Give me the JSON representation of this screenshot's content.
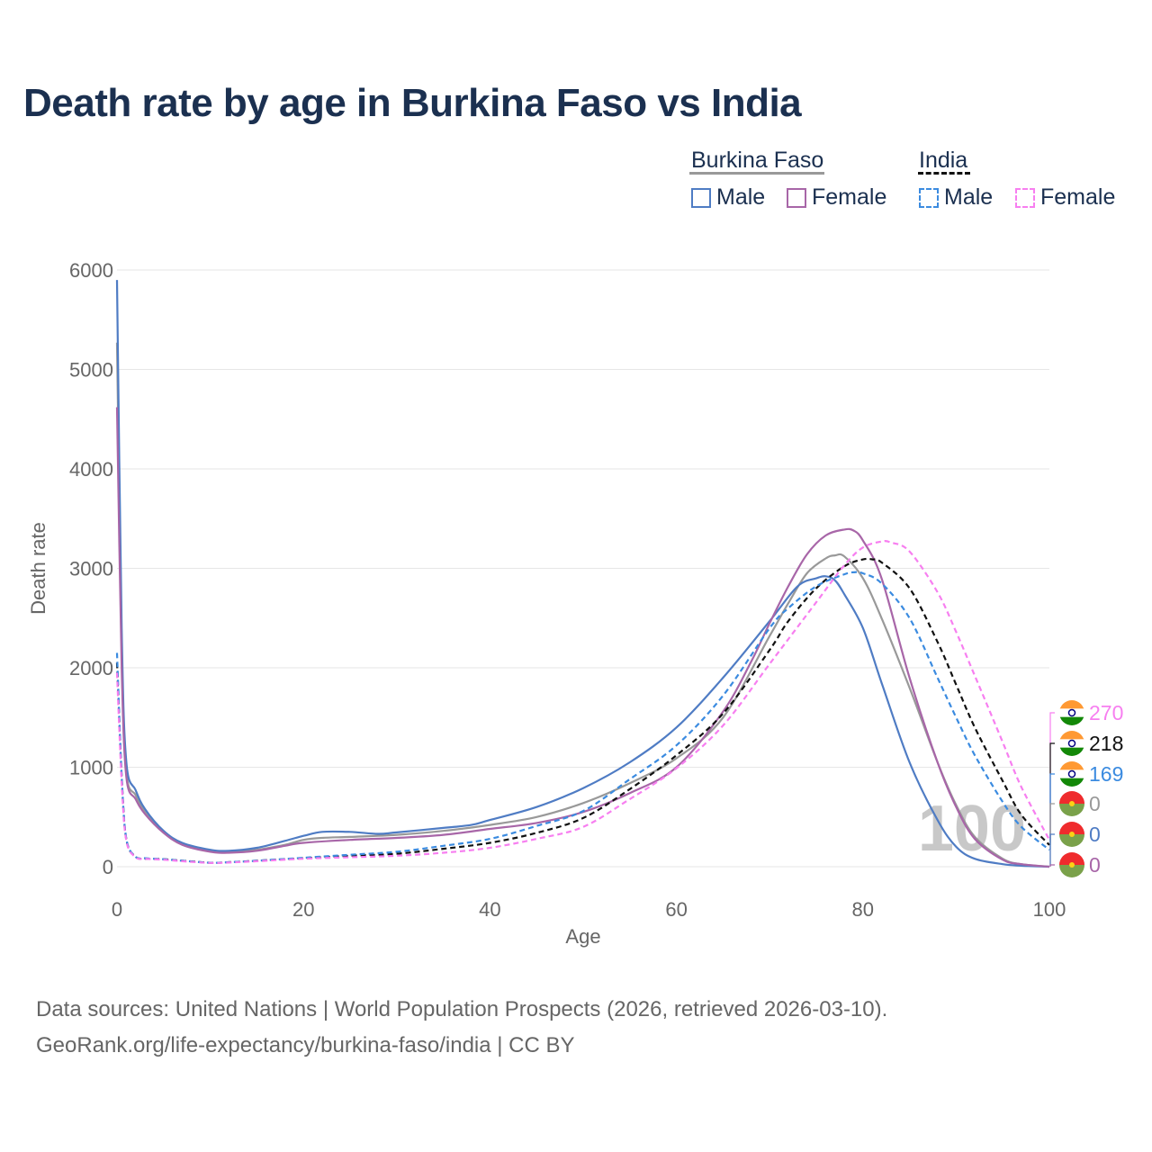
{
  "title": "Death rate by age in Burkina Faso vs India",
  "legend": {
    "groups": [
      {
        "name": "Burkina Faso",
        "items": [
          {
            "label": "Male",
            "color": "#4f7cc4",
            "dashed": false
          },
          {
            "label": "Female",
            "color": "#a866a8",
            "dashed": false
          }
        ],
        "underline_color": "#999999",
        "underline_dashed": false
      },
      {
        "name": "India",
        "items": [
          {
            "label": "Male",
            "color": "#3b8be0",
            "dashed": true
          },
          {
            "label": "Female",
            "color": "#f77ff0",
            "dashed": true
          }
        ],
        "underline_color": "#111111",
        "underline_dashed": true
      }
    ]
  },
  "end_labels": [
    {
      "value": "270",
      "color": "#f77ff0",
      "flag": "india-flag-icon"
    },
    {
      "value": "218",
      "color": "#111111",
      "flag": "india-flag-icon"
    },
    {
      "value": "169",
      "color": "#3b8be0",
      "flag": "india-flag-icon"
    },
    {
      "value": "0",
      "color": "#999999",
      "flag": "burkina-faso-flag-icon"
    },
    {
      "value": "0",
      "color": "#4f7cc4",
      "flag": "burkina-faso-flag-icon"
    },
    {
      "value": "0",
      "color": "#a866a8",
      "flag": "burkina-faso-flag-icon"
    }
  ],
  "watermark_age": "100",
  "footer": {
    "line1": "Data sources: United Nations | World Population Prospects (2026, retrieved 2026-03-10).",
    "line2": "GeoRank.org/life-expectancy/burkina-faso/india | CC BY"
  },
  "chart_data": {
    "type": "line",
    "title": "Death rate by age in Burkina Faso vs India",
    "xlabel": "Age",
    "ylabel": "Death rate",
    "xlim": [
      0,
      100
    ],
    "ylim": [
      0,
      6000
    ],
    "xticks": [
      0,
      20,
      40,
      60,
      80,
      100
    ],
    "yticks": [
      0,
      1000,
      2000,
      3000,
      4000,
      5000,
      6000
    ],
    "series": [
      {
        "name": "Burkina Faso Total",
        "color": "#999999",
        "dash": false,
        "x": [
          0,
          0.5,
          1,
          2,
          3,
          5,
          7,
          10,
          12,
          15,
          18,
          20,
          22,
          25,
          30,
          35,
          40,
          45,
          50,
          55,
          60,
          65,
          70,
          72,
          74,
          76,
          77,
          78,
          80,
          82,
          85,
          88,
          90,
          92,
          95,
          97,
          100
        ],
        "y": [
          5270,
          2200,
          950,
          720,
          550,
          350,
          230,
          160,
          150,
          170,
          220,
          270,
          290,
          300,
          320,
          360,
          420,
          500,
          640,
          840,
          1090,
          1500,
          2320,
          2650,
          2950,
          3100,
          3130,
          3120,
          2900,
          2500,
          1800,
          1050,
          620,
          300,
          80,
          25,
          0
        ]
      },
      {
        "name": "Burkina Faso Male",
        "color": "#4f7cc4",
        "dash": false,
        "x": [
          0,
          0.5,
          1,
          2,
          3,
          5,
          7,
          10,
          12,
          15,
          18,
          20,
          22,
          25,
          28,
          30,
          35,
          38,
          40,
          45,
          50,
          55,
          60,
          65,
          70,
          73,
          75,
          76,
          77,
          78,
          80,
          82,
          85,
          88,
          90,
          92,
          95,
          97,
          100
        ],
        "y": [
          5900,
          2400,
          1050,
          770,
          580,
          360,
          240,
          170,
          160,
          190,
          260,
          310,
          350,
          350,
          330,
          345,
          390,
          420,
          470,
          600,
          790,
          1050,
          1400,
          1900,
          2470,
          2820,
          2900,
          2920,
          2880,
          2740,
          2400,
          1850,
          1050,
          470,
          200,
          80,
          25,
          10,
          0
        ]
      },
      {
        "name": "Burkina Faso Female",
        "color": "#a866a8",
        "dash": false,
        "x": [
          0,
          0.5,
          1,
          2,
          3,
          5,
          7,
          10,
          12,
          15,
          18,
          20,
          25,
          30,
          35,
          40,
          45,
          50,
          55,
          60,
          65,
          68,
          70,
          72,
          74,
          76,
          78,
          79,
          80,
          82,
          85,
          88,
          90,
          92,
          95,
          97,
          100
        ],
        "y": [
          4620,
          2000,
          900,
          680,
          530,
          340,
          220,
          150,
          140,
          160,
          210,
          240,
          270,
          290,
          320,
          380,
          440,
          550,
          740,
          1000,
          1560,
          2060,
          2450,
          2820,
          3140,
          3330,
          3390,
          3380,
          3280,
          2900,
          1900,
          1050,
          600,
          280,
          70,
          25,
          0
        ]
      },
      {
        "name": "India Total",
        "color": "#111111",
        "dash": true,
        "x": [
          0,
          0.5,
          1,
          2,
          3,
          5,
          7,
          10,
          12,
          15,
          20,
          25,
          30,
          35,
          40,
          45,
          50,
          55,
          60,
          65,
          70,
          72,
          75,
          78,
          80,
          81,
          82,
          85,
          88,
          90,
          92,
          95,
          97,
          100
        ],
        "y": [
          2050,
          900,
          270,
          100,
          80,
          75,
          60,
          40,
          45,
          60,
          85,
          110,
          130,
          180,
          240,
          340,
          490,
          780,
          1120,
          1540,
          2180,
          2470,
          2800,
          3020,
          3090,
          3090,
          3060,
          2800,
          2260,
          1830,
          1400,
          860,
          520,
          218
        ]
      },
      {
        "name": "India Male",
        "color": "#3b8be0",
        "dash": true,
        "x": [
          0,
          0.5,
          1,
          2,
          3,
          5,
          7,
          10,
          12,
          15,
          20,
          25,
          30,
          35,
          40,
          45,
          50,
          55,
          60,
          65,
          70,
          72,
          75,
          78,
          79,
          80,
          82,
          85,
          88,
          90,
          92,
          95,
          97,
          100
        ],
        "y": [
          2150,
          920,
          280,
          100,
          85,
          75,
          60,
          40,
          45,
          60,
          90,
          120,
          150,
          210,
          280,
          410,
          560,
          880,
          1220,
          1720,
          2400,
          2600,
          2820,
          2940,
          2960,
          2950,
          2850,
          2500,
          1900,
          1500,
          1120,
          650,
          400,
          169
        ]
      },
      {
        "name": "India Female",
        "color": "#f77ff0",
        "dash": true,
        "x": [
          0,
          0.5,
          1,
          2,
          3,
          5,
          7,
          10,
          12,
          15,
          20,
          25,
          30,
          35,
          40,
          45,
          50,
          55,
          60,
          65,
          70,
          75,
          78,
          80,
          82,
          83,
          85,
          88,
          90,
          92,
          95,
          97,
          100
        ],
        "y": [
          1950,
          850,
          260,
          95,
          80,
          70,
          55,
          38,
          42,
          55,
          80,
          95,
          110,
          140,
          190,
          280,
          400,
          680,
          990,
          1420,
          2040,
          2660,
          3030,
          3210,
          3270,
          3260,
          3170,
          2760,
          2360,
          1920,
          1250,
          800,
          270
        ]
      }
    ]
  }
}
